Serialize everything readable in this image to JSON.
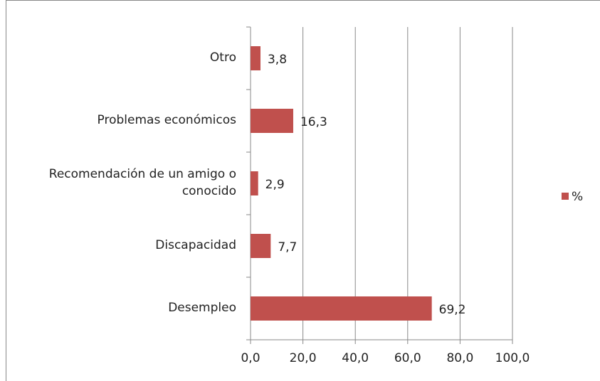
{
  "chart_data": {
    "type": "bar",
    "orientation": "horizontal",
    "categories": [
      "Otro",
      "Problemas económicos",
      "Recomendación de un amigo o conocido",
      "Discapacidad",
      "Desempleo"
    ],
    "series": [
      {
        "name": "%",
        "color": "#c0504d",
        "values": [
          3.8,
          16.3,
          2.9,
          7.7,
          69.2
        ],
        "value_labels": [
          "3,8",
          "16,3",
          "2,9",
          "7,7",
          "69,2"
        ]
      }
    ],
    "xlim": [
      0,
      100
    ],
    "xticks": [
      {
        "value": 0,
        "label": "0,0"
      },
      {
        "value": 20,
        "label": "20,0"
      },
      {
        "value": 40,
        "label": "40,0"
      },
      {
        "value": 60,
        "label": "60,0"
      },
      {
        "value": 80,
        "label": "80,0"
      },
      {
        "value": 100,
        "label": "100,0"
      }
    ],
    "grid": true,
    "legend": "right"
  }
}
